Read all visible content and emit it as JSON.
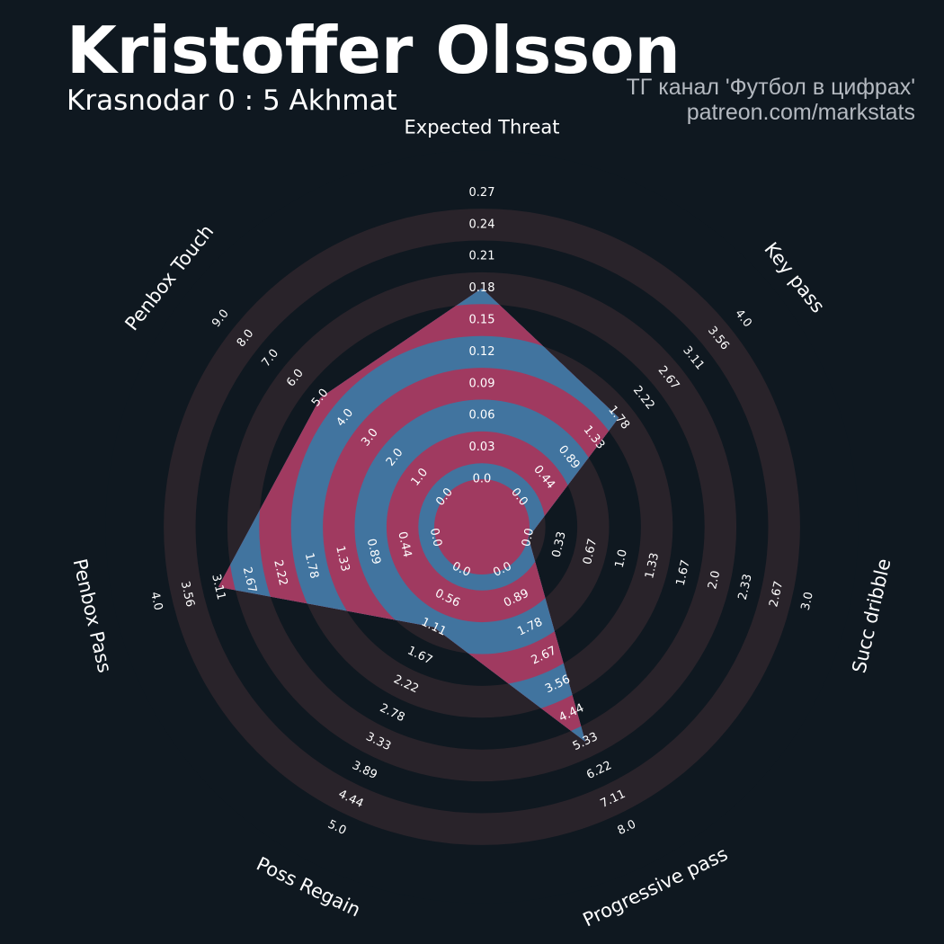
{
  "header": {
    "title": "Kristoffer Olsson",
    "subtitle": "Krasnodar 0 : 5 Akhmat",
    "credit_line1": "ТГ канал 'Футбол в цифрах'",
    "credit_line2": "patreon.com/markstats"
  },
  "colors": {
    "background": "#0f1820",
    "ring_dark": "#0f1820",
    "ring_light": "#29232a",
    "player_fill_a": "#41749f",
    "player_fill_b": "#a03a60",
    "text": "#ffffff"
  },
  "chart_data": {
    "type": "radar",
    "title": "Kristoffer Olsson",
    "subtitle": "Krasnodar 0 : 5 Akhmat",
    "axes": [
      {
        "name": "Expected Threat",
        "min": 0.0,
        "max": 0.27,
        "ticks": [
          "0.0",
          "0.03",
          "0.06",
          "0.09",
          "0.12",
          "0.15",
          "0.18",
          "0.21",
          "0.24",
          "0.27"
        ],
        "value": 0.18
      },
      {
        "name": "Key pass",
        "min": 0.0,
        "max": 4.0,
        "ticks": [
          "0.0",
          "0.44",
          "0.89",
          "1.33",
          "1.78",
          "2.22",
          "2.67",
          "3.11",
          "3.56",
          "4.0"
        ],
        "value": 1.78
      },
      {
        "name": "Succ dribble",
        "min": 0.0,
        "max": 3.0,
        "ticks": [
          "0.0",
          "0.33",
          "0.67",
          "1.0",
          "1.33",
          "1.67",
          "2.0",
          "2.33",
          "2.67",
          "3.0"
        ],
        "value": 0.0
      },
      {
        "name": "Progressive pass",
        "min": 0.0,
        "max": 8.0,
        "ticks": [
          "0.0",
          "0.89",
          "1.78",
          "2.67",
          "3.56",
          "4.44",
          "5.33",
          "6.22",
          "7.11",
          "8.0"
        ],
        "value": 5.33
      },
      {
        "name": "Poss Regain",
        "min": 0.0,
        "max": 5.0,
        "ticks": [
          "0.0",
          "0.56",
          "1.11",
          "1.67",
          "2.22",
          "2.78",
          "3.33",
          "3.89",
          "4.44",
          "5.0"
        ],
        "value": 1.11
      },
      {
        "name": "Penbox Pass",
        "min": 0.0,
        "max": 4.0,
        "ticks": [
          "0.0",
          "0.44",
          "0.89",
          "1.33",
          "1.78",
          "2.22",
          "2.67",
          "3.11",
          "3.56",
          "4.0"
        ],
        "value": 3.11
      },
      {
        "name": "Penbox Touch",
        "min": 0.0,
        "max": 9.0,
        "ticks": [
          "0.0",
          "1.0",
          "2.0",
          "3.0",
          "4.0",
          "5.0",
          "6.0",
          "7.0",
          "8.0",
          "9.0"
        ],
        "value": 5.0
      }
    ]
  }
}
